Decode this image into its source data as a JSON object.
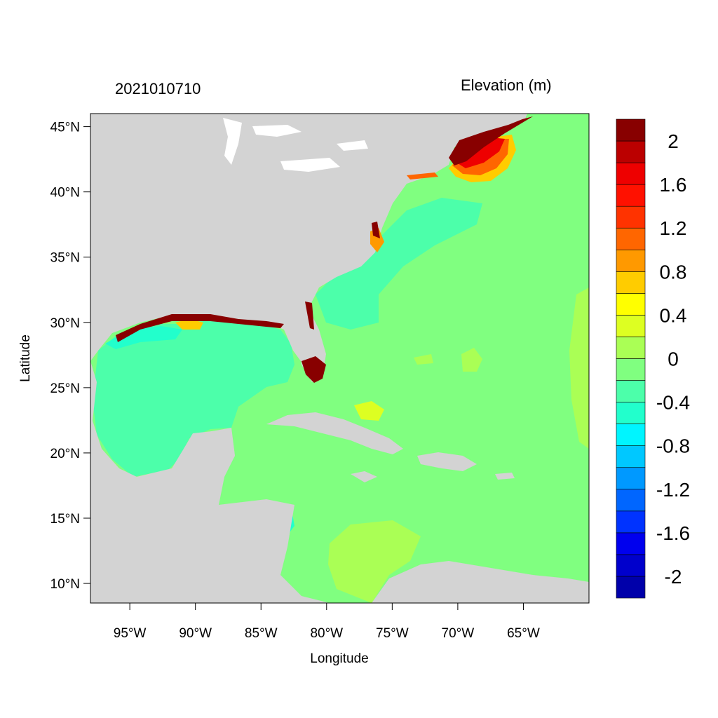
{
  "chart_data": {
    "type": "heatmap",
    "date_label": "2021010710",
    "title": "Elevation (m)",
    "xlabel": "Longitude",
    "ylabel": "Latitude",
    "xlim": [
      -98,
      -60
    ],
    "ylim": [
      8.5,
      46
    ],
    "x_ticks": [
      {
        "value": -95,
        "label": "95°W"
      },
      {
        "value": -90,
        "label": "90°W"
      },
      {
        "value": -85,
        "label": "85°W"
      },
      {
        "value": -80,
        "label": "80°W"
      },
      {
        "value": -75,
        "label": "75°W"
      },
      {
        "value": -70,
        "label": "70°W"
      },
      {
        "value": -65,
        "label": "65°W"
      }
    ],
    "y_ticks": [
      {
        "value": 45,
        "label": "45°N"
      },
      {
        "value": 40,
        "label": "40°N"
      },
      {
        "value": 35,
        "label": "35°N"
      },
      {
        "value": 30,
        "label": "30°N"
      },
      {
        "value": 25,
        "label": "25°N"
      },
      {
        "value": 20,
        "label": "20°N"
      },
      {
        "value": 15,
        "label": "15°N"
      },
      {
        "value": 10,
        "label": "10°N"
      }
    ],
    "colorbar": {
      "levels": [
        -2.2,
        -2.0,
        -1.8,
        -1.6,
        -1.4,
        -1.2,
        -1.0,
        -0.8,
        -0.6,
        -0.4,
        -0.2,
        0,
        0.2,
        0.4,
        0.6,
        0.8,
        1.0,
        1.2,
        1.4,
        1.6,
        1.8,
        2.0,
        2.2
      ],
      "colors": [
        "#0000aa",
        "#0000cc",
        "#0000ee",
        "#0033ff",
        "#0066ff",
        "#0099ff",
        "#00c8ff",
        "#00f5ff",
        "#22ffcc",
        "#4cffaa",
        "#80ff80",
        "#aaff55",
        "#ddff22",
        "#ffff00",
        "#ffcc00",
        "#ff9900",
        "#ff6600",
        "#ff3300",
        "#ff1100",
        "#ee0000",
        "#bb0000",
        "#880000"
      ],
      "labels": [
        {
          "value": 2,
          "label": "2"
        },
        {
          "value": 1.6,
          "label": "1.6"
        },
        {
          "value": 1.2,
          "label": "1.2"
        },
        {
          "value": 0.8,
          "label": "0.8"
        },
        {
          "value": 0.4,
          "label": "0.4"
        },
        {
          "value": 0,
          "label": "0"
        },
        {
          "value": -0.4,
          "label": "-0.4"
        },
        {
          "value": -0.8,
          "label": "-0.8"
        },
        {
          "value": -1.2,
          "label": "-1.2"
        },
        {
          "value": -1.6,
          "label": "-1.6"
        },
        {
          "value": -2,
          "label": "-2"
        }
      ]
    }
  },
  "colors": {
    "land": "#d3d3d3",
    "ocean_base": "#80ff80",
    "shelf": "#4cffaa",
    "positive_low": "#aaff55"
  }
}
